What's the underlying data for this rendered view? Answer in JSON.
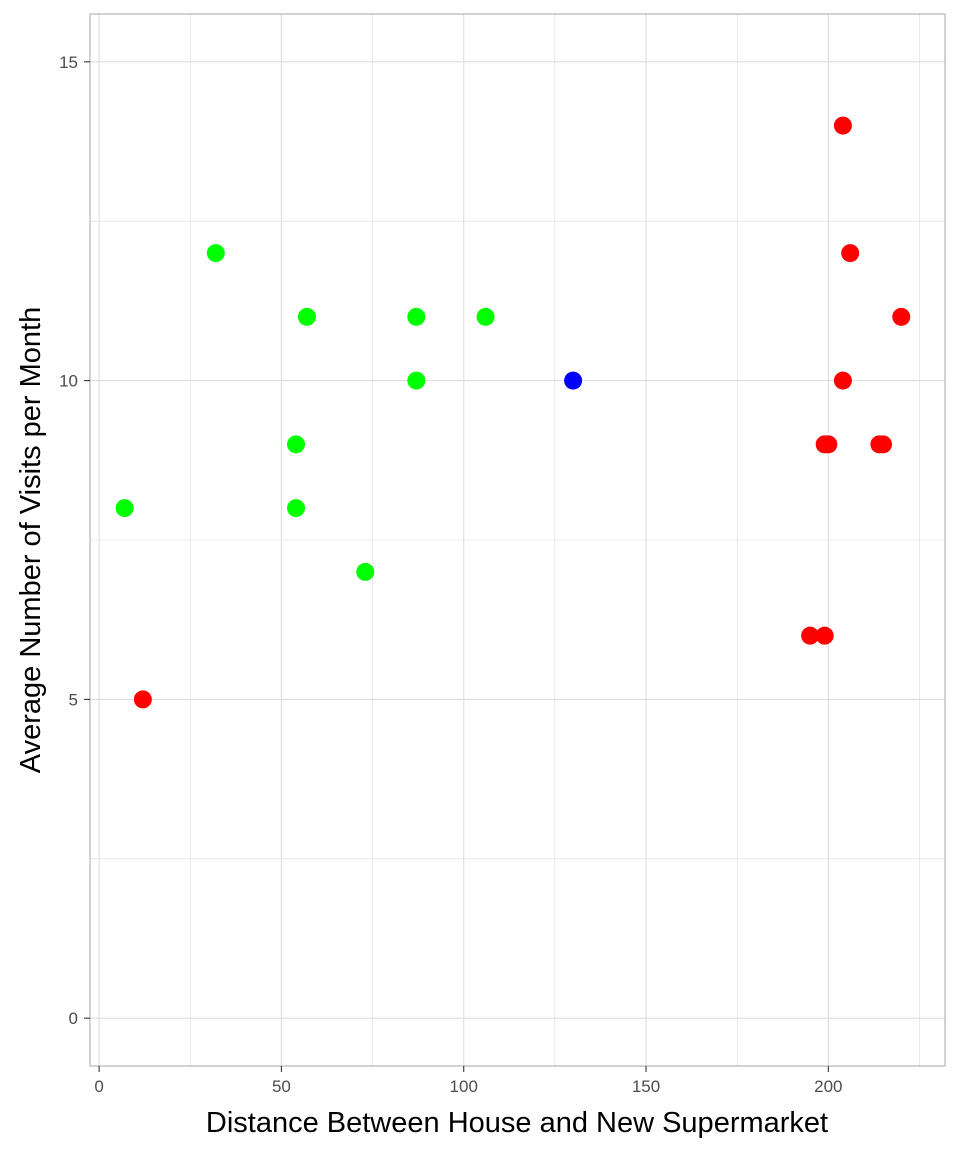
{
  "colors": {
    "background": "#ffffff",
    "grid": "#dedede",
    "panel_border": "#b3b3b3",
    "green": "#00ff00",
    "red": "#ff0000",
    "blue": "#0000ff"
  },
  "chart_data": {
    "type": "scatter",
    "title": "",
    "xlabel": "Distance Between House and New Supermarket",
    "ylabel": "Average Number of Visits per Month",
    "xlim": [
      -2.5,
      232
    ],
    "ylim": [
      -0.75,
      15.75
    ],
    "x_ticks": [
      0,
      50,
      100,
      150,
      200
    ],
    "x_tick_labels": [
      "0",
      "50",
      "100",
      "150",
      "200"
    ],
    "y_ticks": [
      0,
      5,
      10,
      15
    ],
    "y_tick_labels": [
      "0",
      "5",
      "10",
      "15"
    ],
    "x_minor_ticks": [
      25,
      75,
      125,
      175,
      225
    ],
    "y_minor_ticks": [
      2.5,
      7.5,
      12.5
    ],
    "grid": true,
    "legend": "none",
    "series": [
      {
        "color": "green",
        "points": [
          {
            "x": 7,
            "y": 8
          },
          {
            "x": 32,
            "y": 12
          },
          {
            "x": 54,
            "y": 9
          },
          {
            "x": 54,
            "y": 8
          },
          {
            "x": 57,
            "y": 11
          },
          {
            "x": 73,
            "y": 7
          },
          {
            "x": 87,
            "y": 11
          },
          {
            "x": 87,
            "y": 10
          },
          {
            "x": 106,
            "y": 11
          }
        ]
      },
      {
        "color": "red",
        "points": [
          {
            "x": 12,
            "y": 5
          },
          {
            "x": 195,
            "y": 6
          },
          {
            "x": 199,
            "y": 6
          },
          {
            "x": 199,
            "y": 9
          },
          {
            "x": 200,
            "y": 9
          },
          {
            "x": 204,
            "y": 10
          },
          {
            "x": 204,
            "y": 14
          },
          {
            "x": 206,
            "y": 12
          },
          {
            "x": 214,
            "y": 9
          },
          {
            "x": 215,
            "y": 9
          },
          {
            "x": 220,
            "y": 11
          }
        ]
      },
      {
        "color": "blue",
        "points": [
          {
            "x": 130,
            "y": 10
          }
        ]
      }
    ]
  }
}
